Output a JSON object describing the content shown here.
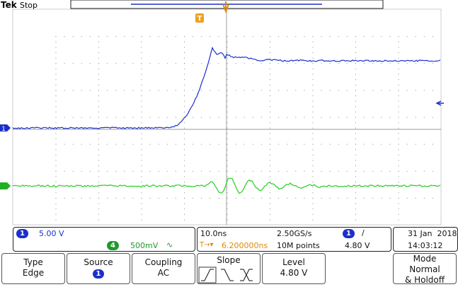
{
  "header": {
    "brand": "Tek",
    "state": "Stop"
  },
  "trigger_marker": "T",
  "ground_marker": "1",
  "status": {
    "ch1": {
      "badge": "1",
      "scale": "5.00 V"
    },
    "ch4": {
      "badge": "4",
      "scale": "500mV",
      "coupling_symbol": "∿"
    },
    "timebase": "10.0ns",
    "sample_rate": "2.50GS/s",
    "trigger_source_badge": "1",
    "trigger_slope_symbol": "/",
    "trigger_position_prefix": "T→▾",
    "trigger_position": "6.200000ns",
    "record_length": "10M points",
    "trigger_level": "4.80 V",
    "date": "31 Jan  2018",
    "time": "14:03:12"
  },
  "menu": [
    {
      "label": "Type",
      "value": "Edge"
    },
    {
      "label": "Source",
      "value": "1"
    },
    {
      "label": "Coupling",
      "value": "AC"
    },
    {
      "label": "Slope"
    },
    {
      "label": "Level",
      "value": "4.80 V"
    },
    {
      "label": "Mode",
      "lines": [
        "Normal",
        "& Holdoff"
      ]
    }
  ]
}
